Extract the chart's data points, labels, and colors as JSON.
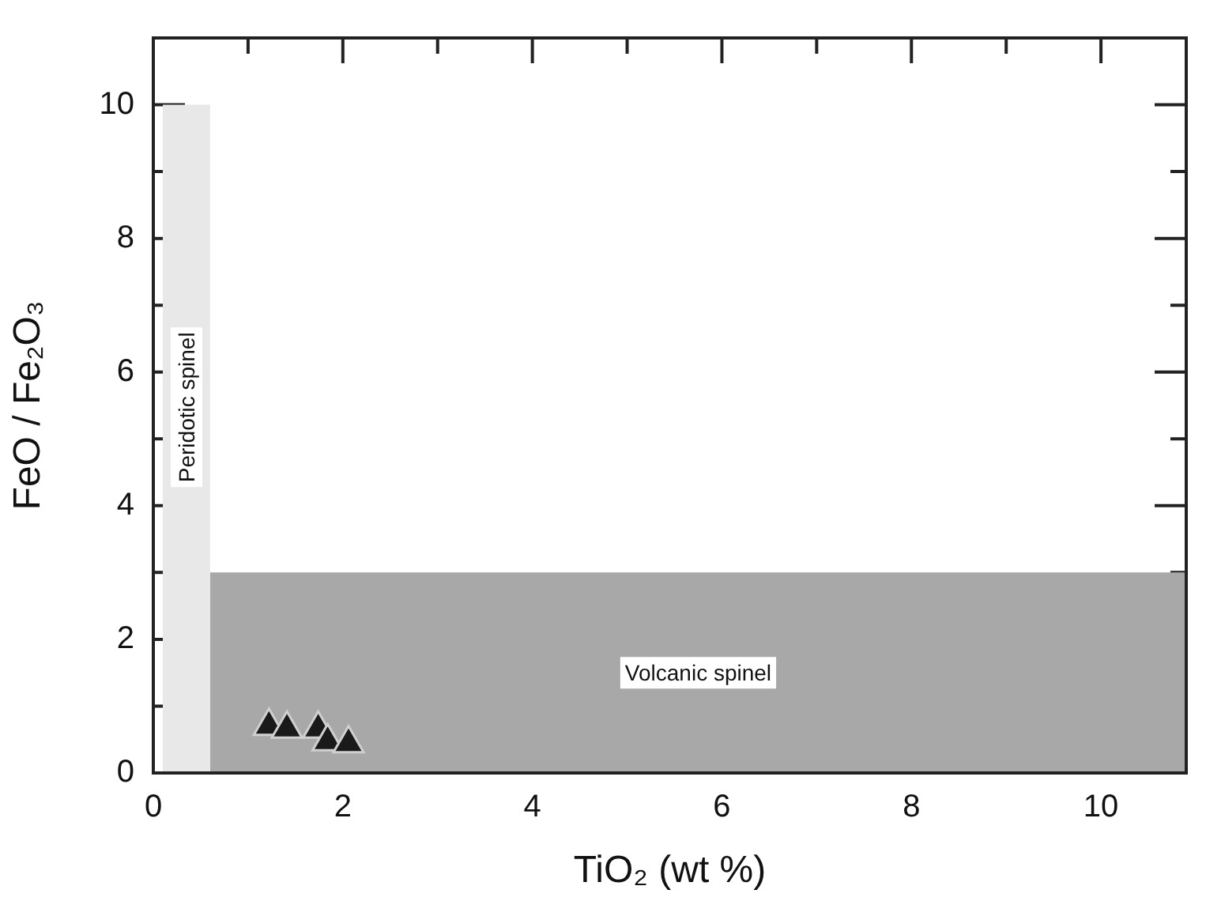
{
  "chart_data": {
    "type": "scatter",
    "xlabel": "TiO₂ (wt %)",
    "ylabel": "FeO / Fe₂O₃",
    "xlim": [
      0,
      10.9
    ],
    "ylim": [
      0,
      11
    ],
    "xticks": [
      0,
      {
        "value": 1,
        "label": null
      },
      2,
      {
        "value": 3,
        "label": null
      },
      4,
      {
        "value": 5,
        "label": null
      },
      6,
      {
        "value": 7,
        "label": null
      },
      8,
      {
        "value": 9,
        "label": null
      },
      10
    ],
    "yticks": [
      0,
      {
        "value": 1,
        "label": null
      },
      2,
      {
        "value": 3,
        "label": null
      },
      4,
      {
        "value": 5,
        "label": null
      },
      6,
      {
        "value": 7,
        "label": null
      },
      8,
      {
        "value": 9,
        "label": null
      },
      10
    ],
    "grid": false,
    "legend": false,
    "series": [
      {
        "type": "area",
        "name": "Volcanic spinel",
        "color": "#a8a8a8",
        "x": [
          0.6,
          10.9
        ],
        "values": [
          3,
          3
        ]
      },
      {
        "type": "area",
        "name": "Peridotic spinel",
        "color": "#e8e8e8",
        "x": [
          0.1,
          0.6
        ],
        "values": [
          10,
          10
        ]
      },
      {
        "marker": "triangle",
        "color": "#1a1a1a",
        "x": [
          1.22,
          1.41,
          1.74,
          1.84,
          2.06
        ],
        "values": [
          0.7,
          0.66,
          0.66,
          0.47,
          0.44
        ]
      }
    ]
  }
}
